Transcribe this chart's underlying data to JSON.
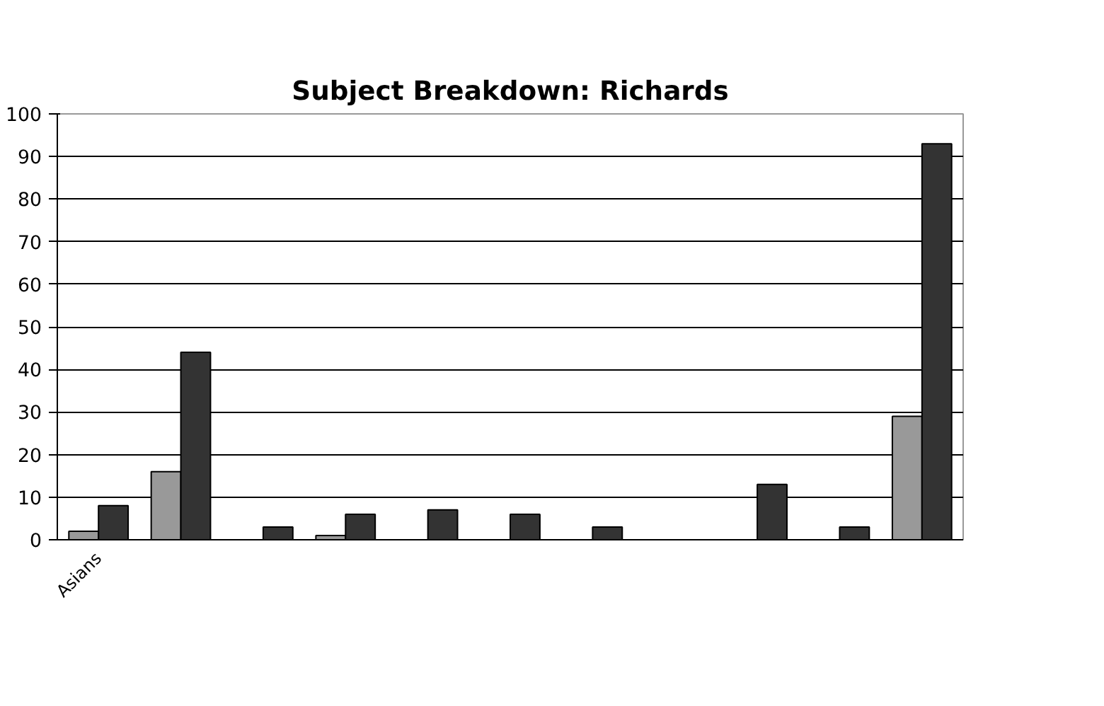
{
  "chart_data": {
    "type": "bar",
    "title": "Subject Breakdown: Richards",
    "categories": [
      "Asians",
      null,
      null,
      null,
      null,
      null,
      null,
      null,
      null,
      null,
      null
    ],
    "series": [
      {
        "color": "#999999",
        "values": [
          2,
          16,
          0,
          1,
          0,
          0,
          0,
          0,
          0,
          0,
          29
        ]
      },
      {
        "color": "#333333",
        "values": [
          8,
          44,
          3,
          6,
          7,
          6,
          3,
          0,
          13,
          3,
          93
        ]
      }
    ],
    "ylim": [
      0,
      100
    ],
    "yticks": [
      0,
      10,
      20,
      30,
      40,
      50,
      60,
      70,
      80,
      90,
      100
    ],
    "grid": "y"
  }
}
